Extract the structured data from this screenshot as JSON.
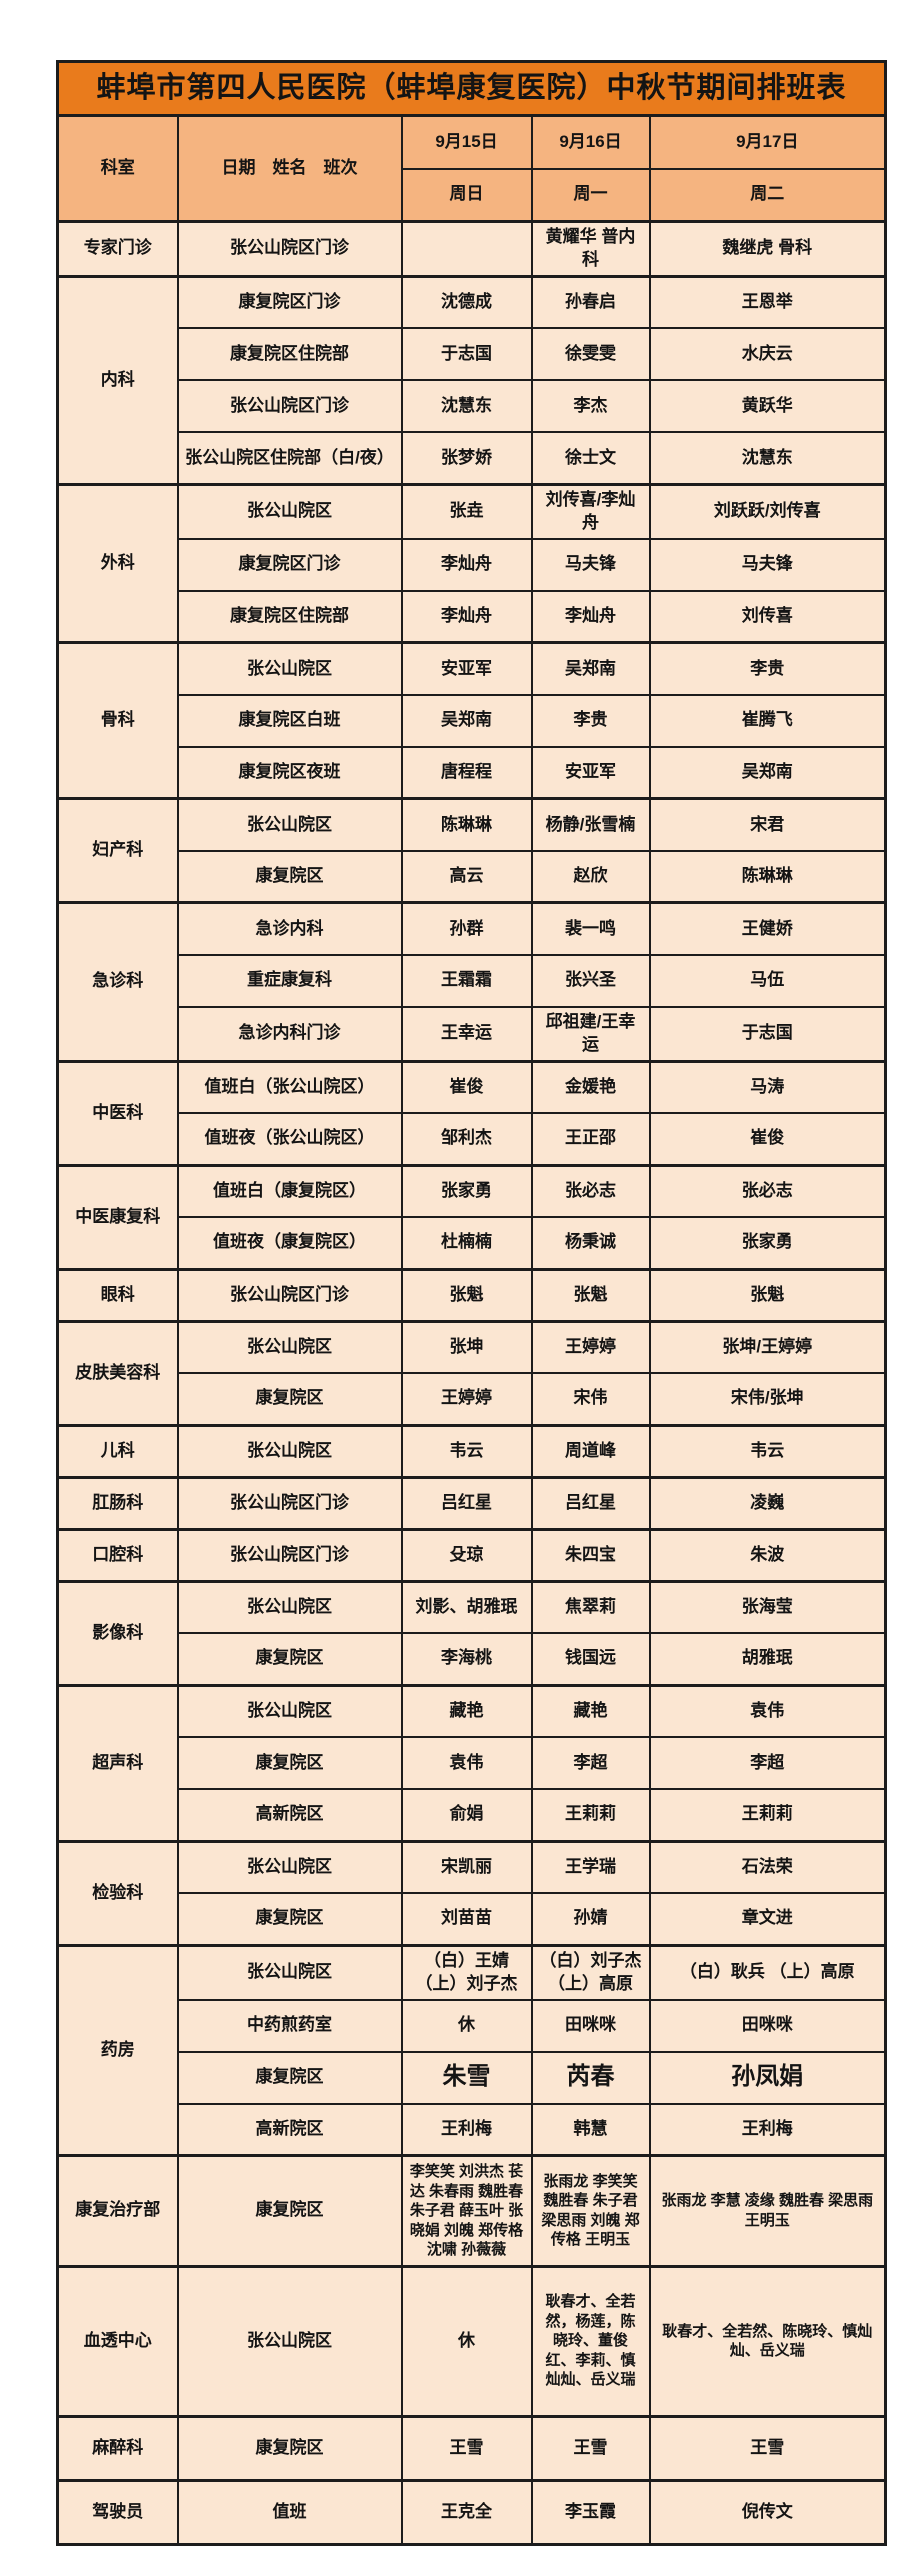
{
  "title": "蚌埠市第四人民医院（蚌埠康复医院）中秋节期间排班表",
  "header": {
    "dept_label": "科室",
    "shift_label": "日期　姓名　班次",
    "days": [
      {
        "date": "9月15日",
        "weekday": "周日"
      },
      {
        "date": "9月16日",
        "weekday": "周一"
      },
      {
        "date": "9月17日",
        "weekday": "周二"
      }
    ]
  },
  "colors": {
    "title_bg": "#e97b1c",
    "header_bg": "#f5b480",
    "cell_bg": "#fbe6d2",
    "border": "#1c1c1c",
    "text": "#141414"
  },
  "sections": [
    {
      "dept": "专家门诊",
      "rows": [
        {
          "shift": "张公山院区门诊",
          "values": [
            "",
            "黄耀华 普内科",
            "魏继虎 骨科"
          ]
        }
      ]
    },
    {
      "dept": "内科",
      "rows": [
        {
          "shift": "康复院区门诊",
          "values": [
            "沈德成",
            "孙春启",
            "王恩举"
          ]
        },
        {
          "shift": "康复院区住院部",
          "values": [
            "于志国",
            "徐雯雯",
            "水庆云"
          ]
        },
        {
          "shift": "张公山院区门诊",
          "values": [
            "沈慧东",
            "李杰",
            "黄跃华"
          ]
        },
        {
          "shift": "张公山院区住院部（白/夜）",
          "values": [
            "张梦娇",
            "徐士文",
            "沈慧东"
          ]
        }
      ]
    },
    {
      "dept": "外科",
      "rows": [
        {
          "shift": "张公山院区",
          "values": [
            "张垚",
            "刘传喜/李灿舟",
            "刘跃跃/刘传喜"
          ]
        },
        {
          "shift": "康复院区门诊",
          "values": [
            "李灿舟",
            "马夫锋",
            "马夫锋"
          ]
        },
        {
          "shift": "康复院区住院部",
          "values": [
            "李灿舟",
            "李灿舟",
            "刘传喜"
          ]
        }
      ]
    },
    {
      "dept": "骨科",
      "rows": [
        {
          "shift": "张公山院区",
          "values": [
            "安亚军",
            "吴郑南",
            "李贵"
          ]
        },
        {
          "shift": "康复院区白班",
          "values": [
            "吴郑南",
            "李贵",
            "崔腾飞"
          ]
        },
        {
          "shift": "康复院区夜班",
          "values": [
            "唐程程",
            "安亚军",
            "吴郑南"
          ]
        }
      ]
    },
    {
      "dept": "妇产科",
      "rows": [
        {
          "shift": "张公山院区",
          "values": [
            "陈琳琳",
            "杨静/张雪楠",
            "宋君"
          ]
        },
        {
          "shift": "康复院区",
          "values": [
            "高云",
            "赵欣",
            "陈琳琳"
          ]
        }
      ]
    },
    {
      "dept": "急诊科",
      "rows": [
        {
          "shift": "急诊内科",
          "values": [
            "孙群",
            "裴一鸣",
            "王健娇"
          ]
        },
        {
          "shift": "重症康复科",
          "values": [
            "王霜霜",
            "张兴圣",
            "马伍"
          ]
        },
        {
          "shift": "急诊内科门诊",
          "values": [
            "王幸运",
            "邱祖建/王幸运",
            "于志国"
          ]
        }
      ]
    },
    {
      "dept": "中医科",
      "rows": [
        {
          "shift": "值班白（张公山院区）",
          "values": [
            "崔俊",
            "金媛艳",
            "马涛"
          ]
        },
        {
          "shift": "值班夜（张公山院区）",
          "values": [
            "邹利杰",
            "王正邵",
            "崔俊"
          ]
        }
      ]
    },
    {
      "dept": "中医康复科",
      "rows": [
        {
          "shift": "值班白（康复院区）",
          "values": [
            "张家勇",
            "张必志",
            "张必志"
          ]
        },
        {
          "shift": "值班夜（康复院区）",
          "values": [
            "杜楠楠",
            "杨秉诚",
            "张家勇"
          ]
        }
      ]
    },
    {
      "dept": "眼科",
      "rows": [
        {
          "shift": "张公山院区门诊",
          "values": [
            "张魁",
            "张魁",
            "张魁"
          ]
        }
      ]
    },
    {
      "dept": "皮肤美容科",
      "rows": [
        {
          "shift": "张公山院区",
          "values": [
            "张坤",
            "王婷婷",
            "张坤/王婷婷"
          ]
        },
        {
          "shift": "康复院区",
          "values": [
            "王婷婷",
            "宋伟",
            "宋伟/张坤"
          ]
        }
      ]
    },
    {
      "dept": "儿科",
      "rows": [
        {
          "shift": "张公山院区",
          "values": [
            "韦云",
            "周道峰",
            "韦云"
          ]
        }
      ]
    },
    {
      "dept": "肛肠科",
      "rows": [
        {
          "shift": "张公山院区门诊",
          "values": [
            "吕红星",
            "吕红星",
            "凌巍"
          ]
        }
      ]
    },
    {
      "dept": "口腔科",
      "rows": [
        {
          "shift": "张公山院区门诊",
          "values": [
            "殳琼",
            "朱四宝",
            "朱波"
          ]
        }
      ]
    },
    {
      "dept": "影像科",
      "rows": [
        {
          "shift": "张公山院区",
          "values": [
            "刘影、胡雅珉",
            "焦翠莉",
            "张海莹"
          ]
        },
        {
          "shift": "康复院区",
          "values": [
            "李海桃",
            "钱国远",
            "胡雅珉"
          ]
        }
      ]
    },
    {
      "dept": "超声科",
      "rows": [
        {
          "shift": "张公山院区",
          "values": [
            "藏艳",
            "藏艳",
            "袁伟"
          ]
        },
        {
          "shift": "康复院区",
          "values": [
            "袁伟",
            "李超",
            "李超"
          ]
        },
        {
          "shift": "高新院区",
          "values": [
            "俞娟",
            "王莉莉",
            "王莉莉"
          ]
        }
      ]
    },
    {
      "dept": "检验科",
      "rows": [
        {
          "shift": "张公山院区",
          "values": [
            "宋凯丽",
            "王学瑞",
            "石法荣"
          ]
        },
        {
          "shift": "康复院区",
          "values": [
            "刘苗苗",
            "孙婧",
            "章文进"
          ]
        }
      ]
    },
    {
      "dept": "药房",
      "rows": [
        {
          "shift": "张公山院区",
          "values": [
            "（白）王婧\n（上）刘子杰",
            "（白）刘子杰\n（上）高原",
            "（白）耿兵 （上）高原"
          ]
        },
        {
          "shift": "中药煎药室",
          "values": [
            "休",
            "田咪咪",
            "田咪咪"
          ]
        },
        {
          "shift": "康复院区",
          "emphasis": true,
          "values": [
            "朱雪",
            "芮春",
            "孙凤娟"
          ]
        },
        {
          "shift": "高新院区",
          "values": [
            "王利梅",
            "韩慧",
            "王利梅"
          ]
        }
      ]
    },
    {
      "dept": "康复治疗部",
      "size": "tall-1",
      "rows": [
        {
          "shift": "康复院区",
          "values": [
            "李笑笑 刘洪杰 苌达 朱春雨 魏胜春 朱子君 薛玉叶 张晓娟 刘魄 郑传格 沈啸 孙薇薇",
            "张雨龙 李笑笑 魏胜春 朱子君 梁思雨 刘魄 郑传格 王明玉",
            "张雨龙 李慧 凌缘 魏胜春 梁思雨 王明玉"
          ]
        }
      ]
    },
    {
      "dept": "血透中心",
      "size": "tall-2",
      "rows": [
        {
          "shift": "张公山院区",
          "values": [
            "休",
            "耿春才、全若然，杨莲，陈晓玲、董俊红、李莉、慎灿灿、岳义瑞",
            "耿春才、全若然、陈晓玲、慎灿灿、岳义瑞"
          ]
        }
      ]
    },
    {
      "dept": "麻醉科",
      "size": "semi",
      "rows": [
        {
          "shift": "康复院区",
          "values": [
            "王雪",
            "王雪",
            "王雪"
          ]
        }
      ]
    },
    {
      "dept": "驾驶员",
      "size": "semi",
      "rows": [
        {
          "shift": "值班",
          "values": [
            "王克全",
            "李玉霞",
            "倪传文"
          ]
        }
      ]
    }
  ]
}
